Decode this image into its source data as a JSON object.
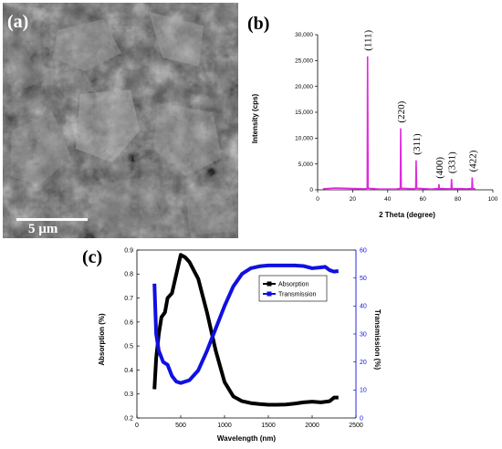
{
  "figure": {
    "panel_a": {
      "label": "(a)",
      "scale_bar_label": "5 µm"
    },
    "panel_b": {
      "label": "(b)"
    },
    "panel_c": {
      "label": "(c)"
    }
  },
  "chart_data": [
    {
      "type": "line",
      "panel": "(b)",
      "title": "",
      "xlabel": "2 Theta (degree)",
      "ylabel": "Intensity (cps)",
      "xlim": [
        0,
        100
      ],
      "ylim": [
        0,
        30000
      ],
      "x_ticks": [
        "0",
        "20",
        "40",
        "60",
        "80",
        "100"
      ],
      "y_ticks": [
        "0",
        "5,000",
        "10,000",
        "15,000",
        "20,000",
        "25,000",
        "30,000"
      ],
      "grid": false,
      "color": "#e028e0",
      "series": [
        {
          "points": [
            [
              3,
              200
            ],
            [
              10,
              350
            ],
            [
              20,
              250
            ],
            [
              27,
              180
            ],
            [
              28.3,
              300
            ],
            [
              28.5,
              25800
            ],
            [
              28.8,
              300
            ],
            [
              35,
              150
            ],
            [
              45,
              140
            ],
            [
              47.2,
              300
            ],
            [
              47.4,
              11900
            ],
            [
              47.7,
              300
            ],
            [
              55,
              200
            ],
            [
              56.0,
              300
            ],
            [
              56.2,
              5700
            ],
            [
              56.5,
              300
            ],
            [
              65,
              150
            ],
            [
              69.0,
              250
            ],
            [
              69.2,
              1100
            ],
            [
              69.5,
              250
            ],
            [
              75,
              180
            ],
            [
              76.2,
              250
            ],
            [
              76.4,
              2100
            ],
            [
              76.7,
              250
            ],
            [
              85,
              200
            ],
            [
              88.0,
              250
            ],
            [
              88.2,
              2400
            ],
            [
              88.5,
              250
            ],
            [
              90,
              200
            ]
          ]
        }
      ],
      "peak_annotations": [
        {
          "label": "(111)",
          "x": 28.5,
          "y": 25800
        },
        {
          "label": "(220)",
          "x": 47.4,
          "y": 11900
        },
        {
          "label": "(311)",
          "x": 56.2,
          "y": 5700
        },
        {
          "label": "(400)",
          "x": 69.2,
          "y": 1100
        },
        {
          "label": "(331)",
          "x": 76.4,
          "y": 2100
        },
        {
          "label": "(422)",
          "x": 88.2,
          "y": 2400
        }
      ]
    },
    {
      "type": "line",
      "panel": "(c)",
      "title": "",
      "xlabel": "Wavelength (nm)",
      "ylabel": "Absorption (%)",
      "y2label": "Transmission (%)",
      "xlim": [
        0,
        2500
      ],
      "ylim": [
        0.2,
        0.9
      ],
      "y2lim": [
        0,
        60
      ],
      "x_ticks": [
        "0",
        "500",
        "1000",
        "1500",
        "2000",
        "2500"
      ],
      "y_ticks": [
        "0.2",
        "0.3",
        "0.4",
        "0.5",
        "0.6",
        "0.7",
        "0.8",
        "0.9"
      ],
      "y2_ticks": [
        "0",
        "10",
        "20",
        "30",
        "40",
        "50",
        "60"
      ],
      "legend_position": "top-right",
      "series": [
        {
          "name": "Absorption",
          "axis": "left",
          "color": "#000000",
          "points": [
            [
              200,
              0.32
            ],
            [
              220,
              0.45
            ],
            [
              250,
              0.55
            ],
            [
              280,
              0.62
            ],
            [
              320,
              0.64
            ],
            [
              350,
              0.7
            ],
            [
              400,
              0.72
            ],
            [
              450,
              0.8
            ],
            [
              500,
              0.88
            ],
            [
              550,
              0.87
            ],
            [
              600,
              0.85
            ],
            [
              700,
              0.78
            ],
            [
              800,
              0.64
            ],
            [
              900,
              0.48
            ],
            [
              1000,
              0.35
            ],
            [
              1100,
              0.29
            ],
            [
              1200,
              0.27
            ],
            [
              1300,
              0.262
            ],
            [
              1400,
              0.258
            ],
            [
              1500,
              0.255
            ],
            [
              1600,
              0.255
            ],
            [
              1700,
              0.256
            ],
            [
              1800,
              0.26
            ],
            [
              1900,
              0.265
            ],
            [
              2000,
              0.268
            ],
            [
              2100,
              0.265
            ],
            [
              2200,
              0.27
            ],
            [
              2250,
              0.285
            ],
            [
              2300,
              0.285
            ]
          ]
        },
        {
          "name": "Transmission",
          "axis": "right",
          "color": "#1010e0",
          "points": [
            [
              200,
              48
            ],
            [
              220,
              30
            ],
            [
              250,
              24
            ],
            [
              300,
              20
            ],
            [
              350,
              19
            ],
            [
              400,
              15
            ],
            [
              450,
              13
            ],
            [
              500,
              12.5
            ],
            [
              600,
              13.5
            ],
            [
              700,
              17
            ],
            [
              800,
              24
            ],
            [
              900,
              32
            ],
            [
              1000,
              40
            ],
            [
              1100,
              47
            ],
            [
              1200,
              51.5
            ],
            [
              1300,
              53.5
            ],
            [
              1400,
              54.2
            ],
            [
              1500,
              54.5
            ],
            [
              1600,
              54.5
            ],
            [
              1700,
              54.5
            ],
            [
              1800,
              54.5
            ],
            [
              1900,
              54.3
            ],
            [
              2000,
              53.5
            ],
            [
              2100,
              53.8
            ],
            [
              2150,
              54
            ],
            [
              2200,
              52.8
            ],
            [
              2250,
              52.3
            ],
            [
              2300,
              52.5
            ]
          ]
        }
      ]
    }
  ]
}
